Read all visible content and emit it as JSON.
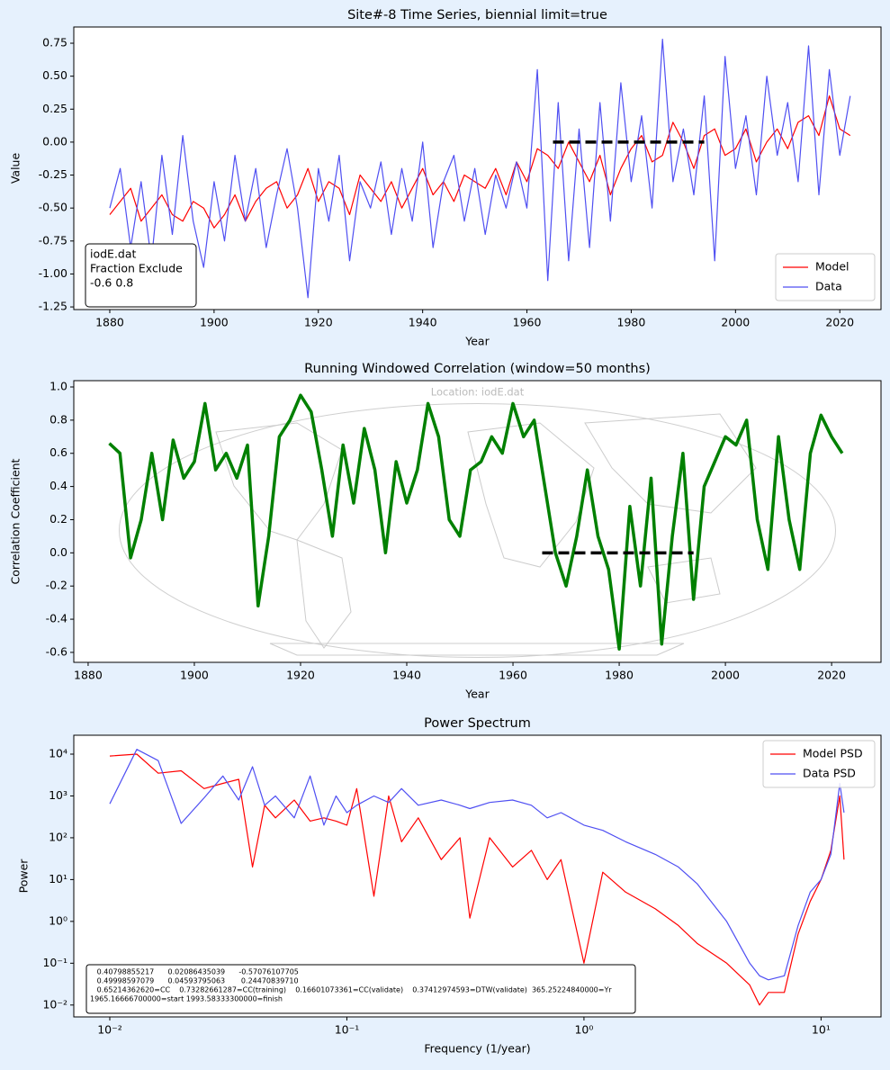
{
  "chart_data": [
    {
      "type": "line",
      "title": "Site#-8 Time Series, biennial limit=true",
      "xlabel": "Year",
      "ylabel": "Value",
      "x": [
        1880,
        1882,
        1884,
        1886,
        1888,
        1890,
        1892,
        1894,
        1896,
        1898,
        1900,
        1902,
        1904,
        1906,
        1908,
        1910,
        1912,
        1914,
        1916,
        1918,
        1920,
        1922,
        1924,
        1926,
        1928,
        1930,
        1932,
        1934,
        1936,
        1938,
        1940,
        1942,
        1944,
        1946,
        1948,
        1950,
        1952,
        1954,
        1956,
        1958,
        1960,
        1962,
        1964,
        1966,
        1968,
        1970,
        1972,
        1974,
        1976,
        1978,
        1980,
        1982,
        1984,
        1986,
        1988,
        1990,
        1992,
        1994,
        1996,
        1998,
        2000,
        2002,
        2004,
        2006,
        2008,
        2010,
        2012,
        2014,
        2016,
        2018,
        2020,
        2022
      ],
      "series": [
        {
          "name": "Model",
          "color": "#ff0000",
          "values": [
            -0.55,
            -0.45,
            -0.35,
            -0.6,
            -0.5,
            -0.4,
            -0.55,
            -0.6,
            -0.45,
            -0.5,
            -0.65,
            -0.55,
            -0.4,
            -0.6,
            -0.45,
            -0.35,
            -0.3,
            -0.5,
            -0.4,
            -0.2,
            -0.45,
            -0.3,
            -0.35,
            -0.55,
            -0.25,
            -0.35,
            -0.45,
            -0.3,
            -0.5,
            -0.35,
            -0.2,
            -0.4,
            -0.3,
            -0.45,
            -0.25,
            -0.3,
            -0.35,
            -0.2,
            -0.4,
            -0.15,
            -0.3,
            -0.05,
            -0.1,
            -0.2,
            0.0,
            -0.15,
            -0.3,
            -0.1,
            -0.4,
            -0.2,
            -0.05,
            0.05,
            -0.15,
            -0.1,
            0.15,
            0.0,
            -0.2,
            0.05,
            0.1,
            -0.1,
            -0.05,
            0.1,
            -0.15,
            0.0,
            0.1,
            -0.05,
            0.15,
            0.2,
            0.05,
            0.35,
            0.1,
            0.05
          ]
        },
        {
          "name": "Data",
          "color": "#4f4ff2",
          "values": [
            -0.5,
            -0.2,
            -0.8,
            -0.3,
            -0.9,
            -0.1,
            -0.7,
            0.05,
            -0.6,
            -0.95,
            -0.3,
            -0.75,
            -0.1,
            -0.6,
            -0.2,
            -0.8,
            -0.4,
            -0.05,
            -0.5,
            -1.18,
            -0.2,
            -0.6,
            -0.1,
            -0.9,
            -0.3,
            -0.5,
            -0.15,
            -0.7,
            -0.2,
            -0.6,
            0.0,
            -0.8,
            -0.3,
            -0.1,
            -0.6,
            -0.2,
            -0.7,
            -0.25,
            -0.5,
            -0.15,
            -0.5,
            0.55,
            -1.05,
            0.3,
            -0.9,
            0.1,
            -0.8,
            0.3,
            -0.6,
            0.45,
            -0.3,
            0.2,
            -0.5,
            0.78,
            -0.3,
            0.1,
            -0.4,
            0.35,
            -0.9,
            0.65,
            -0.2,
            0.2,
            -0.4,
            0.5,
            -0.1,
            0.3,
            -0.3,
            0.73,
            -0.4,
            0.55,
            -0.1,
            0.35
          ]
        }
      ],
      "reference_line": {
        "x": [
          1965,
          1994
        ],
        "y": 0
      },
      "text_box": [
        "iodE.dat",
        "Fraction Exclude",
        "-0.6 0.8"
      ],
      "legend": "lower right",
      "xlim": [
        1873.1,
        2027.9
      ],
      "ylim": [
        -1.27,
        0.873
      ],
      "xticks": [
        1880,
        1900,
        1920,
        1940,
        1960,
        1980,
        2000,
        2020
      ],
      "yticks": [
        -1.25,
        {
          "value": -1.0,
          "label": "-1.00"
        },
        -0.75,
        {
          "value": -0.5,
          "label": "-0.50"
        },
        -0.25,
        {
          "value": 0,
          "label": "0.00"
        },
        0.25,
        {
          "value": 0.5,
          "label": "0.50"
        },
        0.75
      ]
    },
    {
      "type": "line",
      "title": "Running Windowed Correlation (window=50 months)",
      "xlabel": "Year",
      "ylabel": "Correlation Coefficient",
      "background_label": "Location: iodE.dat",
      "x": [
        1884,
        1886,
        1888,
        1890,
        1892,
        1894,
        1896,
        1898,
        1900,
        1902,
        1904,
        1906,
        1908,
        1910,
        1912,
        1914,
        1916,
        1918,
        1920,
        1922,
        1924,
        1926,
        1928,
        1930,
        1932,
        1934,
        1936,
        1938,
        1940,
        1942,
        1944,
        1946,
        1948,
        1950,
        1952,
        1954,
        1956,
        1958,
        1960,
        1962,
        1964,
        1966,
        1968,
        1970,
        1972,
        1974,
        1976,
        1978,
        1980,
        1982,
        1984,
        1986,
        1988,
        1990,
        1992,
        1994,
        1996,
        1998,
        2000,
        2002,
        2004,
        2006,
        2008,
        2010,
        2012,
        2014,
        2016,
        2018,
        2020,
        2022
      ],
      "series": [
        {
          "name": "Correlation",
          "color": "#008000",
          "values": [
            0.66,
            0.6,
            -0.03,
            0.2,
            0.6,
            0.2,
            0.68,
            0.45,
            0.55,
            0.9,
            0.5,
            0.6,
            0.45,
            0.65,
            -0.32,
            0.1,
            0.7,
            0.8,
            0.95,
            0.85,
            0.5,
            0.1,
            0.65,
            0.3,
            0.75,
            0.5,
            0.0,
            0.55,
            0.3,
            0.5,
            0.9,
            0.7,
            0.2,
            0.1,
            0.5,
            0.55,
            0.7,
            0.6,
            0.9,
            0.7,
            0.8,
            0.4,
            0.0,
            -0.2,
            0.1,
            0.5,
            0.1,
            -0.1,
            -0.58,
            0.28,
            -0.2,
            0.45,
            -0.55,
            0.1,
            0.6,
            -0.28,
            0.4,
            0.55,
            0.7,
            0.65,
            0.8,
            0.2,
            -0.1,
            0.7,
            0.2,
            -0.1,
            0.6,
            0.83,
            0.7,
            0.6
          ]
        }
      ],
      "reference_line": {
        "x": [
          1965.5,
          1994
        ],
        "y": 0
      },
      "xlim": [
        1877.3,
        2029.3
      ],
      "ylim": [
        -0.66,
        1.038
      ],
      "xticks": [
        1880,
        1900,
        1920,
        1940,
        1960,
        1980,
        2000,
        2020
      ],
      "yticks": [
        -0.6,
        -0.4,
        -0.2,
        {
          "value": 0,
          "label": "0.0"
        },
        0.2,
        0.4,
        0.6,
        0.8,
        {
          "value": 1,
          "label": "1.0"
        }
      ]
    },
    {
      "type": "line",
      "title": "Power Spectrum",
      "xlabel": "Frequency (1/year)",
      "ylabel": "Power",
      "xscale": "log",
      "yscale": "log",
      "x": [
        0.01,
        0.013,
        0.016,
        0.02,
        0.025,
        0.03,
        0.035,
        0.04,
        0.045,
        0.05,
        0.06,
        0.07,
        0.08,
        0.09,
        0.1,
        0.11,
        0.13,
        0.15,
        0.17,
        0.2,
        0.25,
        0.3,
        0.33,
        0.4,
        0.5,
        0.6,
        0.7,
        0.8,
        1.0,
        1.2,
        1.5,
        2,
        2.5,
        3,
        4,
        5,
        5.5,
        6,
        7,
        8,
        9,
        10,
        11,
        12,
        12.5
      ],
      "series": [
        {
          "name": "Model PSD",
          "color": "#ff0000",
          "values": [
            9000,
            10000,
            3500,
            4000,
            1500,
            2000,
            2500,
            20,
            600,
            300,
            800,
            250,
            300,
            250,
            200,
            1500,
            4,
            1000,
            80,
            300,
            30,
            100,
            1.2,
            100,
            20,
            50,
            10,
            30,
            0.1,
            15,
            5,
            2,
            0.8,
            0.3,
            0.1,
            0.03,
            0.01,
            0.02,
            0.02,
            0.5,
            3,
            10,
            50,
            1000,
            30
          ]
        },
        {
          "name": "Data PSD",
          "color": "#4f4ff2",
          "values": [
            650,
            13000,
            7000,
            220,
            900,
            3000,
            800,
            5000,
            600,
            1000,
            300,
            3000,
            200,
            1000,
            400,
            600,
            1000,
            700,
            1500,
            600,
            800,
            600,
            500,
            700,
            800,
            600,
            300,
            400,
            200,
            150,
            80,
            40,
            20,
            8,
            1,
            0.1,
            0.05,
            0.04,
            0.05,
            0.8,
            5,
            10,
            40,
            2000,
            400
          ]
        }
      ],
      "text_box": [
        "   0.40798855217      0.02086435039      -0.57076107705",
        "   0.49998597079      0.04593795063       0.24470839710",
        "   0.65214362620=CC    0.73282661287=CC(training)    0.16601073361=CC(validate)    0.37412974593=DTW(validate)  365.25224840000=Yr",
        "1965.16666700000=start 1993.58333300000=finish"
      ],
      "legend": "upper right",
      "xlim": [
        0.00705,
        17.9
      ],
      "ylim": [
        0.0052,
        28300
      ],
      "xticks": [
        {
          "value": 0.01,
          "label": "10⁻²"
        },
        {
          "value": 0.1,
          "label": "10⁻¹"
        },
        {
          "value": 1,
          "label": "10⁰"
        },
        {
          "value": 10,
          "label": "10¹"
        }
      ],
      "yticks": [
        {
          "value": 0.01,
          "label": "10⁻²"
        },
        {
          "value": 0.1,
          "label": "10⁻¹"
        },
        {
          "value": 1,
          "label": "10⁰"
        },
        {
          "value": 10,
          "label": "10¹"
        },
        {
          "value": 100,
          "label": "10²"
        },
        {
          "value": 1000,
          "label": "10³"
        },
        {
          "value": 10000,
          "label": "10⁴"
        }
      ]
    }
  ]
}
